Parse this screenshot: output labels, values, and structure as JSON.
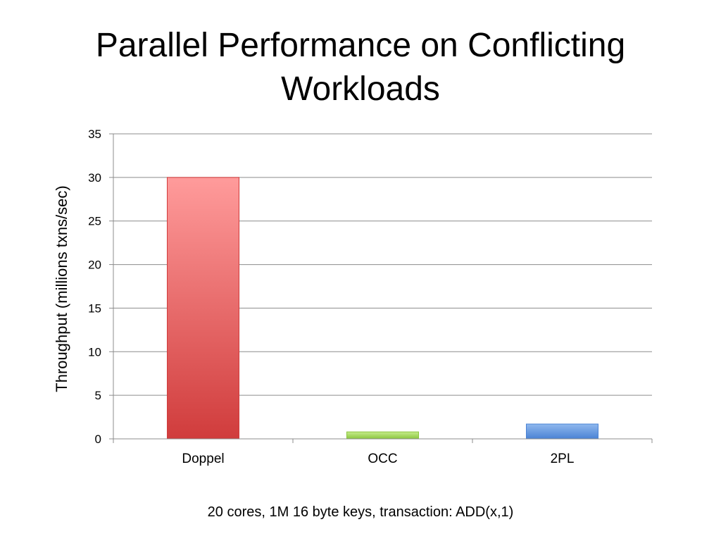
{
  "slide": {
    "title_line1": "Parallel Performance on Conflicting",
    "title_line2": "Workloads",
    "caption": "20 cores, 1M 16 byte keys, transaction: ADD(x,1)"
  },
  "chart_data": {
    "type": "bar",
    "categories": [
      "Doppel",
      "OCC",
      "2PL"
    ],
    "values": [
      30,
      0.8,
      1.7
    ],
    "bar_colors": [
      [
        "#ff9b9b",
        "#d03c3c"
      ],
      [
        "#c6ec8c",
        "#8cc63f"
      ],
      [
        "#8fb8ee",
        "#4a82d4"
      ]
    ],
    "title": "",
    "xlabel": "",
    "ylabel": "Throughput (millions txns/sec)",
    "ylim": [
      0,
      35
    ],
    "yticks": [
      0,
      5,
      10,
      15,
      20,
      25,
      30,
      35
    ],
    "grid": true,
    "legend": "none"
  }
}
